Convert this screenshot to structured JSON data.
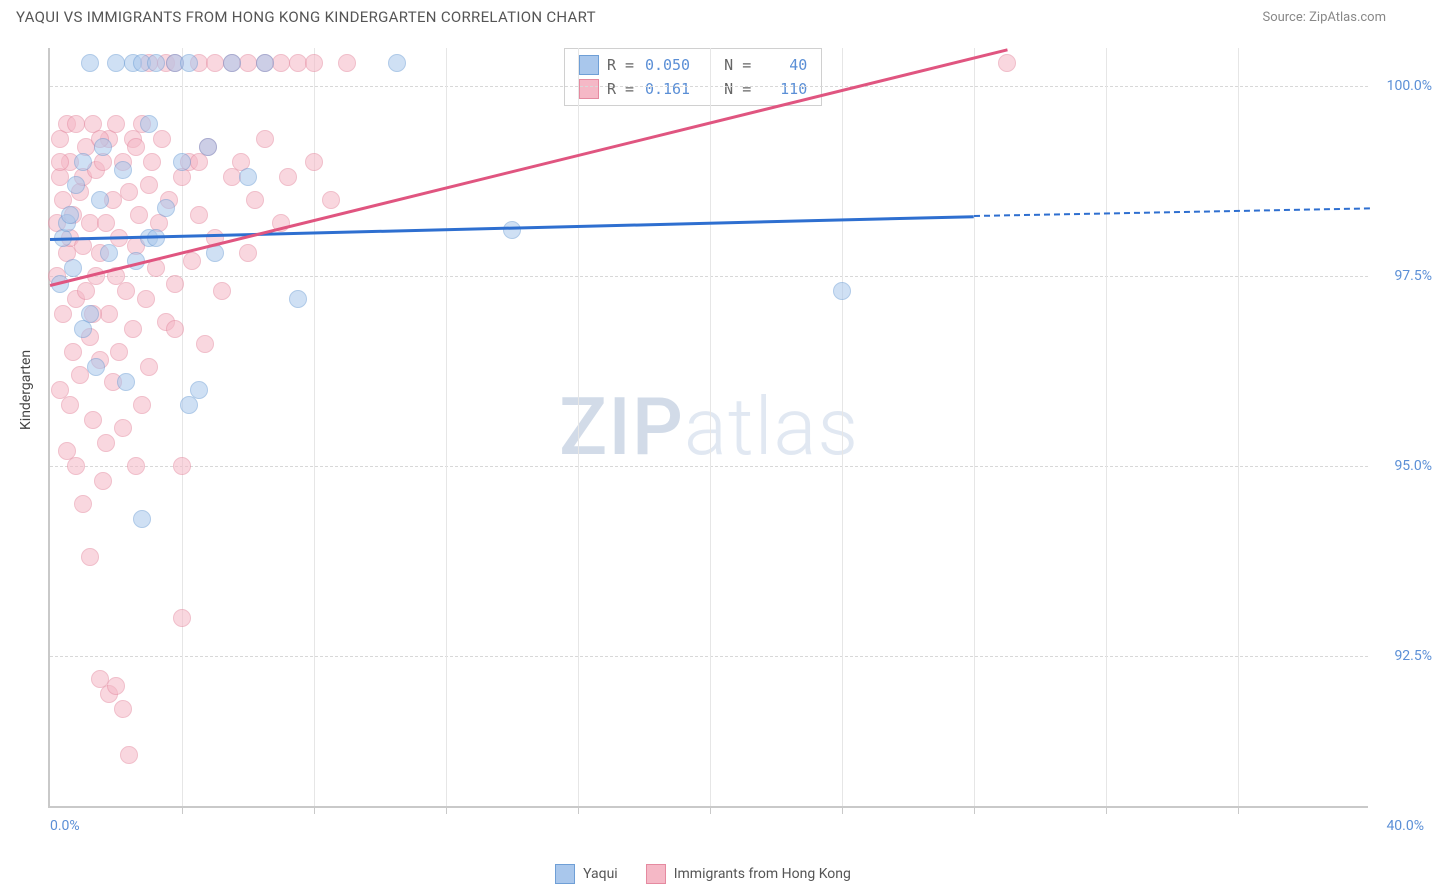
{
  "title": "YAQUI VS IMMIGRANTS FROM HONG KONG KINDERGARTEN CORRELATION CHART",
  "source_label": "Source: ZipAtlas.com",
  "watermark_bold": "ZIP",
  "watermark_light": "atlas",
  "y_axis_title": "Kindergarten",
  "chart": {
    "type": "scatter",
    "x_min": 0.0,
    "x_max": 40.0,
    "y_min": 90.5,
    "y_max": 100.5,
    "x_min_label": "0.0%",
    "x_max_label": "40.0%",
    "y_ticks": [
      92.5,
      95.0,
      97.5,
      100.0
    ],
    "y_tick_labels": [
      "92.5%",
      "95.0%",
      "97.5%",
      "100.0%"
    ],
    "x_ticks": [
      4,
      8,
      12,
      16,
      20,
      24,
      28,
      32,
      36
    ],
    "grid_color": "#d8d8d8",
    "background": "#ffffff",
    "axis_color": "#c9c9c9",
    "label_color": "#5b8fd6"
  },
  "series": [
    {
      "name": "Yaqui",
      "color_fill": "#a9c7ec",
      "color_stroke": "#6f9fd6",
      "trend_color": "#2e6fd0",
      "R": "0.050",
      "N": "40",
      "trend": {
        "x0": 0,
        "y0": 98.0,
        "x1": 28,
        "y1": 98.3,
        "dash_x1": 40,
        "dash_y1": 98.4
      },
      "points": [
        [
          0.3,
          97.4
        ],
        [
          0.4,
          98.0
        ],
        [
          0.5,
          98.2
        ],
        [
          0.6,
          98.3
        ],
        [
          0.7,
          97.6
        ],
        [
          0.8,
          98.7
        ],
        [
          1.0,
          99.0
        ],
        [
          1.2,
          97.0
        ],
        [
          1.2,
          100.3
        ],
        [
          1.4,
          96.3
        ],
        [
          1.5,
          98.5
        ],
        [
          1.6,
          99.2
        ],
        [
          1.8,
          97.8
        ],
        [
          2.0,
          100.3
        ],
        [
          2.2,
          98.9
        ],
        [
          2.3,
          96.1
        ],
        [
          2.5,
          100.3
        ],
        [
          2.6,
          97.7
        ],
        [
          2.8,
          100.3
        ],
        [
          3.0,
          99.5
        ],
        [
          3.0,
          98.0
        ],
        [
          3.2,
          100.3
        ],
        [
          3.5,
          98.4
        ],
        [
          3.8,
          100.3
        ],
        [
          4.0,
          99.0
        ],
        [
          4.2,
          95.8
        ],
        [
          4.2,
          100.3
        ],
        [
          4.5,
          96.0
        ],
        [
          4.8,
          99.2
        ],
        [
          5.0,
          97.8
        ],
        [
          5.5,
          100.3
        ],
        [
          6.0,
          98.8
        ],
        [
          6.5,
          100.3
        ],
        [
          7.5,
          97.2
        ],
        [
          10.5,
          100.3
        ],
        [
          14.0,
          98.1
        ],
        [
          24.0,
          97.3
        ],
        [
          2.8,
          94.3
        ],
        [
          1.0,
          96.8
        ],
        [
          3.2,
          98.0
        ]
      ]
    },
    {
      "name": "Immigrants from Hong Kong",
      "color_fill": "#f5b8c6",
      "color_stroke": "#e58aa0",
      "trend_color": "#e05580",
      "R": "0.161",
      "N": "110",
      "trend": {
        "x0": 0,
        "y0": 97.4,
        "x1": 29,
        "y1": 100.5
      },
      "points": [
        [
          0.2,
          98.2
        ],
        [
          0.2,
          97.5
        ],
        [
          0.3,
          98.8
        ],
        [
          0.3,
          96.0
        ],
        [
          0.3,
          99.3
        ],
        [
          0.4,
          97.0
        ],
        [
          0.4,
          98.5
        ],
        [
          0.5,
          99.5
        ],
        [
          0.5,
          95.2
        ],
        [
          0.5,
          97.8
        ],
        [
          0.6,
          98.0
        ],
        [
          0.6,
          99.0
        ],
        [
          0.7,
          96.5
        ],
        [
          0.7,
          98.3
        ],
        [
          0.8,
          95.0
        ],
        [
          0.8,
          97.2
        ],
        [
          0.8,
          99.5
        ],
        [
          0.9,
          98.6
        ],
        [
          0.9,
          96.2
        ],
        [
          1.0,
          97.9
        ],
        [
          1.0,
          94.5
        ],
        [
          1.0,
          98.8
        ],
        [
          1.1,
          99.2
        ],
        [
          1.1,
          97.3
        ],
        [
          1.2,
          96.7
        ],
        [
          1.2,
          93.8
        ],
        [
          1.2,
          98.2
        ],
        [
          1.3,
          95.6
        ],
        [
          1.3,
          99.5
        ],
        [
          1.4,
          97.5
        ],
        [
          1.4,
          98.9
        ],
        [
          1.5,
          96.4
        ],
        [
          1.5,
          92.2
        ],
        [
          1.5,
          97.8
        ],
        [
          1.6,
          99.0
        ],
        [
          1.6,
          94.8
        ],
        [
          1.7,
          98.2
        ],
        [
          1.7,
          95.3
        ],
        [
          1.8,
          99.3
        ],
        [
          1.8,
          97.0
        ],
        [
          1.8,
          92.0
        ],
        [
          1.9,
          98.5
        ],
        [
          1.9,
          96.1
        ],
        [
          2.0,
          97.5
        ],
        [
          2.0,
          99.5
        ],
        [
          2.0,
          92.1
        ],
        [
          2.1,
          98.0
        ],
        [
          2.2,
          95.5
        ],
        [
          2.2,
          99.0
        ],
        [
          2.3,
          97.3
        ],
        [
          2.4,
          98.6
        ],
        [
          2.4,
          91.2
        ],
        [
          2.5,
          96.8
        ],
        [
          2.5,
          99.3
        ],
        [
          2.6,
          97.9
        ],
        [
          2.7,
          98.3
        ],
        [
          2.8,
          95.8
        ],
        [
          2.8,
          99.5
        ],
        [
          2.9,
          97.2
        ],
        [
          3.0,
          98.7
        ],
        [
          3.0,
          96.3
        ],
        [
          3.1,
          99.0
        ],
        [
          3.2,
          97.6
        ],
        [
          3.3,
          98.2
        ],
        [
          3.4,
          99.3
        ],
        [
          3.5,
          96.9
        ],
        [
          3.5,
          100.3
        ],
        [
          3.6,
          98.5
        ],
        [
          3.8,
          97.4
        ],
        [
          3.8,
          100.3
        ],
        [
          4.0,
          98.8
        ],
        [
          4.0,
          95.0
        ],
        [
          4.0,
          93.0
        ],
        [
          4.2,
          99.0
        ],
        [
          4.3,
          97.7
        ],
        [
          4.5,
          98.3
        ],
        [
          4.5,
          100.3
        ],
        [
          4.7,
          96.6
        ],
        [
          4.8,
          99.2
        ],
        [
          5.0,
          98.0
        ],
        [
          5.0,
          100.3
        ],
        [
          5.2,
          97.3
        ],
        [
          5.5,
          98.8
        ],
        [
          5.5,
          100.3
        ],
        [
          5.8,
          99.0
        ],
        [
          6.0,
          97.8
        ],
        [
          6.0,
          100.3
        ],
        [
          6.2,
          98.5
        ],
        [
          6.5,
          100.3
        ],
        [
          6.5,
          99.3
        ],
        [
          7.0,
          98.2
        ],
        [
          7.0,
          100.3
        ],
        [
          7.2,
          98.8
        ],
        [
          7.5,
          100.3
        ],
        [
          8.0,
          99.0
        ],
        [
          8.0,
          100.3
        ],
        [
          8.5,
          98.5
        ],
        [
          9.0,
          100.3
        ],
        [
          1.5,
          99.3
        ],
        [
          2.2,
          91.8
        ],
        [
          2.6,
          99.2
        ],
        [
          3.0,
          100.3
        ],
        [
          29.0,
          100.3
        ],
        [
          0.3,
          99.0
        ],
        [
          0.6,
          95.8
        ],
        [
          1.3,
          97.0
        ],
        [
          2.1,
          96.5
        ],
        [
          2.6,
          95.0
        ],
        [
          3.8,
          96.8
        ],
        [
          4.5,
          99.0
        ]
      ]
    }
  ],
  "stats_labels": {
    "R": "R =",
    "N": "N ="
  },
  "legend": {
    "series1": "Yaqui",
    "series2": "Immigrants from Hong Kong"
  }
}
